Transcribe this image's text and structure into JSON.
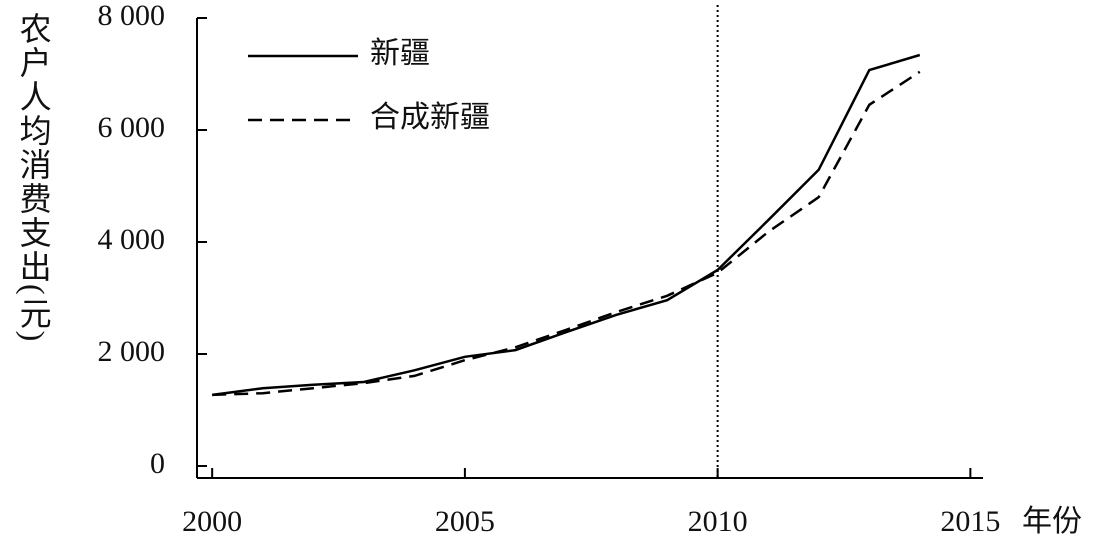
{
  "chart_data": {
    "type": "line",
    "y_label": "农户人均消费支出(元)",
    "x_label": "年份",
    "x": [
      2000,
      2001,
      2002,
      2003,
      2004,
      2005,
      2006,
      2007,
      2008,
      2009,
      2010,
      2011,
      2012,
      2013,
      2014
    ],
    "series": [
      {
        "name": "新疆",
        "color": "#000000",
        "linestyle": "solid",
        "values": [
          1270,
          1390,
          1450,
          1500,
          1710,
          1950,
          2070,
          2390,
          2700,
          2960,
          3500,
          4390,
          5290,
          7070,
          7340
        ]
      },
      {
        "name": "合成新疆",
        "color": "#000000",
        "linestyle": "dashed",
        "values": [
          1270,
          1300,
          1390,
          1480,
          1610,
          1890,
          2120,
          2430,
          2750,
          3040,
          3450,
          4180,
          4800,
          6450,
          7040
        ]
      }
    ],
    "xlim": [
      1999.7,
      2015.25
    ],
    "ylim": [
      -214,
      8000
    ],
    "xticks": [
      2000,
      2005,
      2010,
      2015
    ],
    "yticks": [
      0,
      {
        "value": 2000,
        "label": "2 000"
      },
      {
        "value": 4000,
        "label": "4 000"
      },
      {
        "value": 6000,
        "label": "6 000"
      },
      {
        "value": 8000,
        "label": "8 000"
      }
    ],
    "vline": 2010,
    "legend": "upper left"
  }
}
